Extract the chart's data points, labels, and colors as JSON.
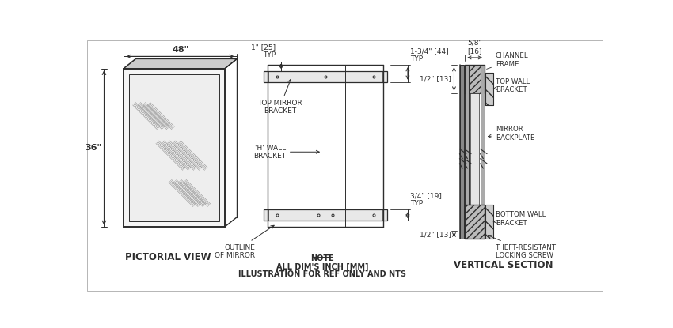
{
  "bg_color": "#ffffff",
  "line_color": "#2d2d2d",
  "title_pictorial": "PICTORIAL VIEW",
  "title_vertical": "VERTICAL SECTION",
  "note_line1": "NOTE",
  "note_line2": "ALL DIM'S INCH [MM]",
  "note_line3": "ILLUSTRATION FOR REF ONLY AND NTS",
  "dim_48": "48\"",
  "dim_36": "36\"",
  "dim_1_25": "1\" [25]\nTYP",
  "dim_1_3_4_44": "1-3/4\" [44]\nTYP",
  "dim_3_4_19": "3/4\" [19]\nTYP",
  "dim_5_8_16": "5/8\"\n[16]",
  "dim_1_2_13_top": "1/2\" [13]",
  "dim_1_2_13_bot": "1/2\" [13]",
  "label_channel_frame": "CHANNEL\nFRAME",
  "label_top_wall_bracket": "TOP WALL\nBRACKET",
  "label_mirror_backplate": "MIRROR\nBACKPLATE",
  "label_bottom_wall_bracket": "BOTTOM WALL\nBRACKET",
  "label_theft_screw": "THEFT-RESISTANT\nLOCKING SCREW",
  "label_top_mirror_bracket": "TOP MIRROR\nBRACKET",
  "label_h_wall_bracket": "'H' WALL\nBRACKET",
  "label_outline_mirror": "OUTLINE\nOF MIRROR"
}
